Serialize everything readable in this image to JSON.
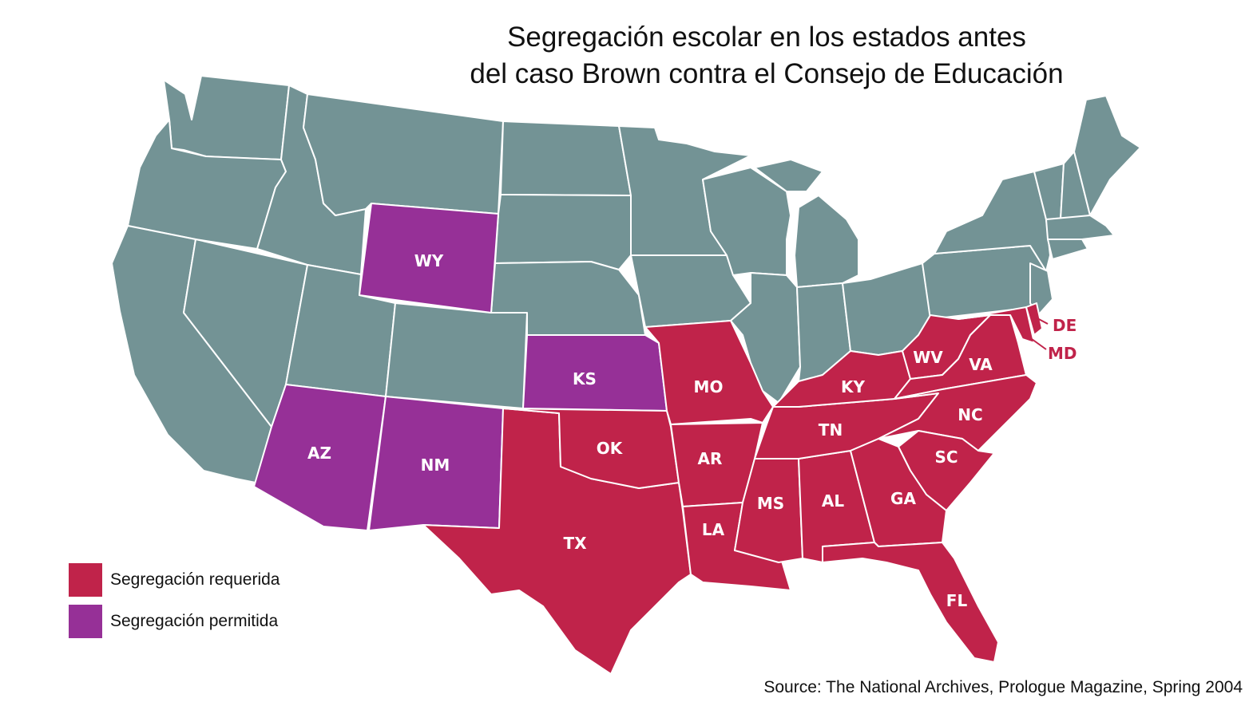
{
  "title": {
    "line1": "Segregación escolar en los estados antes",
    "line2": "del caso Brown contra el Consejo de Educación"
  },
  "colors": {
    "none": "#739395",
    "required": "#c0234a",
    "permitted": "#963097",
    "border": "#ffffff"
  },
  "legend": {
    "required_label": "Segregación requerida",
    "permitted_label": "Segregación permitida"
  },
  "states": {
    "required": [
      "DE",
      "MD",
      "WV",
      "VA",
      "KY",
      "MO",
      "OK",
      "TX",
      "AR",
      "LA",
      "MS",
      "AL",
      "TN",
      "NC",
      "SC",
      "GA",
      "FL"
    ],
    "permitted": [
      "WY",
      "KS",
      "AZ",
      "NM"
    ]
  },
  "labels": {
    "WY": "WY",
    "KS": "KS",
    "AZ": "AZ",
    "NM": "NM",
    "MO": "MO",
    "OK": "OK",
    "TX": "TX",
    "AR": "AR",
    "LA": "LA",
    "MS": "MS",
    "AL": "AL",
    "TN": "TN",
    "KY": "KY",
    "WV": "WV",
    "VA": "VA",
    "NC": "NC",
    "SC": "SC",
    "GA": "GA",
    "FL": "FL",
    "DE": "DE",
    "MD": "MD"
  },
  "source": "Source: The National Archives, Prologue Magazine, Spring 2004"
}
